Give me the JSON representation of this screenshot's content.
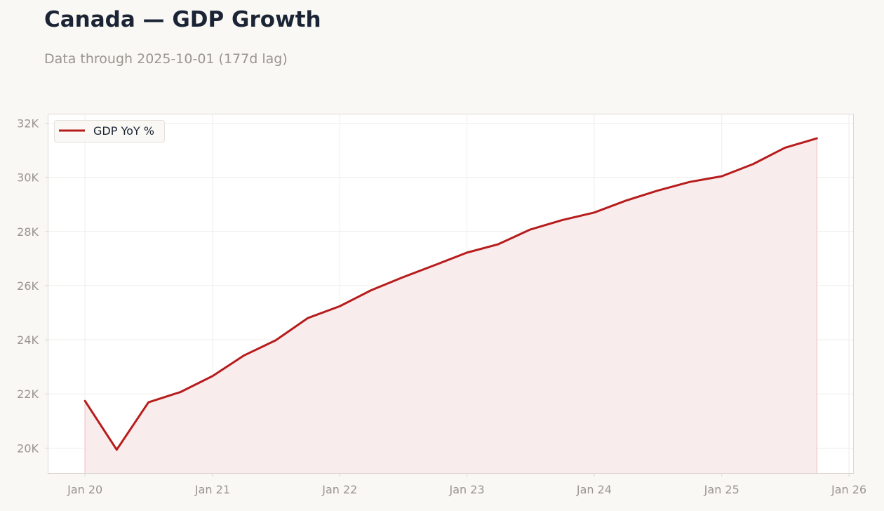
{
  "title": "Canada — GDP Growth",
  "subtitle": "Data through 2025-10-01 (177d lag)",
  "colors": {
    "line": "#b71c1c",
    "fill": "#f9eced",
    "grid": "#efedea",
    "frame": "#dcd8d0",
    "tick_text": "#9a958f",
    "title_text": "#1b2435"
  },
  "chart_data": {
    "type": "area",
    "title": "Canada — GDP Growth",
    "subtitle": "Data through 2025-10-01 (177d lag)",
    "xlabel": "",
    "ylabel": "",
    "grid": true,
    "legend_position": "top-left",
    "x_ticks": [
      {
        "date": "2020-01-01",
        "label": "Jan 20"
      },
      {
        "date": "2021-01-01",
        "label": "Jan 21"
      },
      {
        "date": "2022-01-01",
        "label": "Jan 22"
      },
      {
        "date": "2023-01-01",
        "label": "Jan 23"
      },
      {
        "date": "2024-01-01",
        "label": "Jan 24"
      },
      {
        "date": "2025-01-01",
        "label": "Jan 25"
      },
      {
        "date": "2026-01-01",
        "label": "Jan 26"
      }
    ],
    "y_ticks": [
      {
        "value": 20000,
        "label": "20K"
      },
      {
        "value": 22000,
        "label": "22K"
      },
      {
        "value": 24000,
        "label": "24K"
      },
      {
        "value": 26000,
        "label": "26K"
      },
      {
        "value": 28000,
        "label": "28K"
      },
      {
        "value": 30000,
        "label": "30K"
      },
      {
        "value": 32000,
        "label": "32K"
      }
    ],
    "xlim": [
      "2019-09-16",
      "2026-01-15"
    ],
    "ylim": [
      19050,
      32350
    ],
    "series": [
      {
        "name": "GDP YoY %",
        "x": [
          "2020-01-01",
          "2020-04-01",
          "2020-07-01",
          "2020-10-01",
          "2021-01-01",
          "2021-04-01",
          "2021-07-01",
          "2021-10-01",
          "2022-01-01",
          "2022-04-01",
          "2022-07-01",
          "2022-10-01",
          "2023-01-01",
          "2023-04-01",
          "2023-07-01",
          "2023-10-01",
          "2024-01-01",
          "2024-04-01",
          "2024-07-01",
          "2024-10-01",
          "2025-01-01",
          "2025-04-01",
          "2025-07-01",
          "2025-10-01"
        ],
        "values": [
          21740,
          19940,
          21690,
          22070,
          22660,
          23420,
          23980,
          24800,
          25240,
          25830,
          26310,
          26760,
          27220,
          27530,
          28070,
          28420,
          28700,
          29140,
          29510,
          29830,
          30040,
          30490,
          31090,
          31440
        ]
      }
    ]
  }
}
